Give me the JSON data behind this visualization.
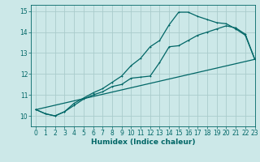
{
  "title": "",
  "xlabel": "Humidex (Indice chaleur)",
  "ylabel": "",
  "bg_color": "#cce8e8",
  "grid_color": "#aacccc",
  "line_color": "#006666",
  "xlim": [
    -0.5,
    23
  ],
  "ylim": [
    9.5,
    15.3
  ],
  "yticks": [
    10,
    11,
    12,
    13,
    14,
    15
  ],
  "xticks": [
    0,
    1,
    2,
    3,
    4,
    5,
    6,
    7,
    8,
    9,
    10,
    11,
    12,
    13,
    14,
    15,
    16,
    17,
    18,
    19,
    20,
    21,
    22,
    23
  ],
  "series1_x": [
    0,
    1,
    2,
    3,
    4,
    5,
    6,
    7,
    8,
    9,
    10,
    11,
    12,
    13,
    14,
    15,
    16,
    17,
    18,
    19,
    20,
    21,
    22,
    23
  ],
  "series1_y": [
    10.3,
    10.1,
    10.0,
    10.2,
    10.5,
    10.8,
    11.0,
    11.15,
    11.4,
    11.5,
    11.8,
    11.85,
    11.9,
    12.55,
    13.3,
    13.35,
    13.6,
    13.85,
    14.0,
    14.15,
    14.3,
    14.2,
    13.9,
    12.7
  ],
  "series2_x": [
    0,
    1,
    2,
    3,
    4,
    5,
    6,
    7,
    8,
    9,
    10,
    11,
    12,
    13,
    14,
    15,
    16,
    17,
    18,
    19,
    20,
    21,
    22,
    23
  ],
  "series2_y": [
    10.3,
    10.1,
    10.0,
    10.2,
    10.6,
    10.85,
    11.1,
    11.3,
    11.6,
    11.9,
    12.4,
    12.75,
    13.3,
    13.6,
    14.35,
    14.95,
    14.95,
    14.75,
    14.6,
    14.45,
    14.4,
    14.15,
    13.85,
    12.7
  ],
  "series3_x": [
    0,
    23
  ],
  "series3_y": [
    10.3,
    12.7
  ],
  "xlabel_fontsize": 6.5,
  "tick_fontsize": 5.5,
  "lw": 0.9,
  "marker_size": 2.0
}
